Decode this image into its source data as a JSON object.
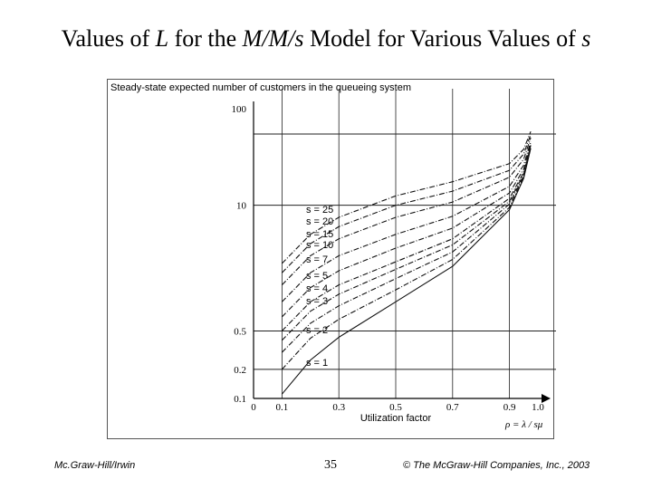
{
  "slide": {
    "title_prefix": "Values of ",
    "title_L": "L",
    "title_mid": " for the ",
    "title_model": "M/M/s",
    "title_mid2": " Model for Various Values of ",
    "title_s": "s"
  },
  "footer": {
    "left": "Mc.Graw-Hill/Irwin",
    "page": "35",
    "right": "© The McGraw-Hill Companies, Inc., 2003"
  },
  "chart_data": {
    "type": "line",
    "title": "",
    "ylabel": "Steady-state expected number of customers in the queueing system",
    "xlabel": "Utilization factor",
    "xformula": "ρ = λ / sμ",
    "yscale": "log",
    "xlim": [
      0,
      1.0
    ],
    "ylim": [
      0.1,
      100
    ],
    "x_ticks": [
      "0",
      "0.1",
      "0.3",
      "0.5",
      "0.7",
      "0.9",
      "1.0"
    ],
    "x_tick_values": [
      0,
      0.1,
      0.3,
      0.5,
      0.7,
      0.9,
      1.0
    ],
    "y_ticks": [
      "100",
      "10",
      "0.5",
      "0.2",
      "0.1"
    ],
    "y_tick_values": [
      100,
      10,
      0.5,
      0.2,
      0.1
    ],
    "grid": true,
    "series": [
      {
        "name": "s = 1",
        "x": [
          0.1,
          0.2,
          0.3,
          0.5,
          0.7,
          0.9,
          0.95,
          0.975
        ],
        "y": [
          0.111,
          0.25,
          0.43,
          1.0,
          2.33,
          9.0,
          19.0,
          39.0
        ]
      },
      {
        "name": "s = 2",
        "x": [
          0.1,
          0.2,
          0.3,
          0.5,
          0.7,
          0.9,
          0.95,
          0.975
        ],
        "y": [
          0.2,
          0.42,
          0.66,
          1.33,
          2.75,
          9.5,
          19.5,
          39.5
        ]
      },
      {
        "name": "s = 3",
        "x": [
          0.1,
          0.2,
          0.3,
          0.5,
          0.7,
          0.9,
          0.95,
          0.975
        ],
        "y": [
          0.3,
          0.6,
          0.91,
          1.74,
          3.29,
          10.3,
          20.2,
          40.3
        ]
      },
      {
        "name": "s = 4",
        "x": [
          0.1,
          0.2,
          0.3,
          0.5,
          0.7,
          0.9,
          0.95,
          0.975
        ],
        "y": [
          0.4,
          0.8,
          1.2,
          2.17,
          3.89,
          11.0,
          21.0,
          41.0
        ]
      },
      {
        "name": "s = 5",
        "x": [
          0.1,
          0.2,
          0.3,
          0.5,
          0.7,
          0.9,
          0.95,
          0.975
        ],
        "y": [
          0.5,
          1.0,
          1.5,
          2.6,
          4.5,
          11.8,
          21.9,
          41.8
        ]
      },
      {
        "name": "s = 7",
        "x": [
          0.1,
          0.2,
          0.3,
          0.5,
          0.7,
          0.9,
          0.95,
          0.975
        ],
        "y": [
          0.7,
          1.4,
          2.1,
          3.6,
          5.8,
          13.4,
          23.6,
          43.5
        ]
      },
      {
        "name": "s = 10",
        "x": [
          0.1,
          0.2,
          0.3,
          0.5,
          0.7,
          0.9,
          0.95,
          0.975
        ],
        "y": [
          1.0,
          2.0,
          3.0,
          5.0,
          7.7,
          15.7,
          26.0,
          46.0
        ]
      },
      {
        "name": "s = 15",
        "x": [
          0.1,
          0.2,
          0.3,
          0.5,
          0.7,
          0.9,
          0.95,
          0.975
        ],
        "y": [
          1.5,
          3.0,
          4.5,
          7.5,
          10.8,
          19.5,
          30.0,
          50.0
        ]
      },
      {
        "name": "s = 20",
        "x": [
          0.1,
          0.2,
          0.3,
          0.5,
          0.7,
          0.9,
          0.95,
          0.975
        ],
        "y": [
          2.0,
          4.0,
          6.0,
          10.0,
          14.0,
          23.0,
          34.0,
          54.0
        ]
      },
      {
        "name": "s = 25",
        "x": [
          0.1,
          0.2,
          0.3,
          0.5,
          0.7,
          0.9,
          0.95,
          0.975
        ],
        "y": [
          2.5,
          5.0,
          7.5,
          12.5,
          17.5,
          27.0,
          38.0,
          58.0
        ]
      }
    ]
  }
}
